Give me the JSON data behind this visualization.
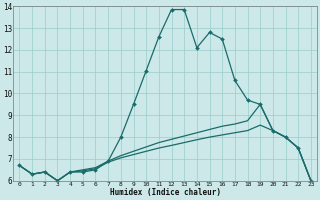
{
  "xlabel": "Humidex (Indice chaleur)",
  "background_color": "#cce8e8",
  "grid_color": "#99cccc",
  "line_color": "#1a6b6b",
  "xlim": [
    -0.5,
    23.5
  ],
  "ylim": [
    6,
    14
  ],
  "xticks": [
    0,
    1,
    2,
    3,
    4,
    5,
    6,
    7,
    8,
    9,
    10,
    11,
    12,
    13,
    14,
    15,
    16,
    17,
    18,
    19,
    20,
    21,
    22,
    23
  ],
  "yticks": [
    6,
    7,
    8,
    9,
    10,
    11,
    12,
    13,
    14
  ],
  "curve1_x": [
    0,
    1,
    2,
    3,
    4,
    5,
    6,
    7,
    8,
    9,
    10,
    11,
    12,
    13,
    14,
    15,
    16,
    17,
    18,
    19,
    20,
    21,
    22,
    23
  ],
  "curve1_y": [
    6.7,
    6.3,
    6.4,
    6.0,
    6.4,
    6.4,
    6.5,
    6.9,
    8.0,
    9.5,
    11.05,
    12.6,
    13.85,
    13.85,
    12.1,
    12.8,
    12.5,
    10.6,
    9.7,
    9.5,
    8.3,
    8.0,
    7.5,
    6.0
  ],
  "curve2_x": [
    0,
    1,
    2,
    3,
    4,
    5,
    6,
    7,
    8,
    9,
    10,
    11,
    12,
    13,
    14,
    15,
    16,
    17,
    18,
    19,
    20,
    21,
    22,
    23
  ],
  "curve2_y": [
    6.7,
    6.3,
    6.4,
    6.0,
    6.4,
    6.5,
    6.6,
    6.9,
    7.15,
    7.35,
    7.55,
    7.75,
    7.9,
    8.05,
    8.2,
    8.35,
    8.5,
    8.6,
    8.75,
    9.5,
    8.3,
    8.0,
    7.5,
    6.0
  ],
  "curve3_x": [
    0,
    1,
    2,
    3,
    4,
    5,
    6,
    7,
    8,
    9,
    10,
    11,
    12,
    13,
    14,
    15,
    16,
    17,
    18,
    19,
    20,
    21,
    22,
    23
  ],
  "curve3_y": [
    6.7,
    6.3,
    6.4,
    6.0,
    6.4,
    6.45,
    6.55,
    6.85,
    7.05,
    7.2,
    7.35,
    7.5,
    7.62,
    7.75,
    7.88,
    8.0,
    8.1,
    8.2,
    8.3,
    8.55,
    8.3,
    8.0,
    7.5,
    6.0
  ]
}
